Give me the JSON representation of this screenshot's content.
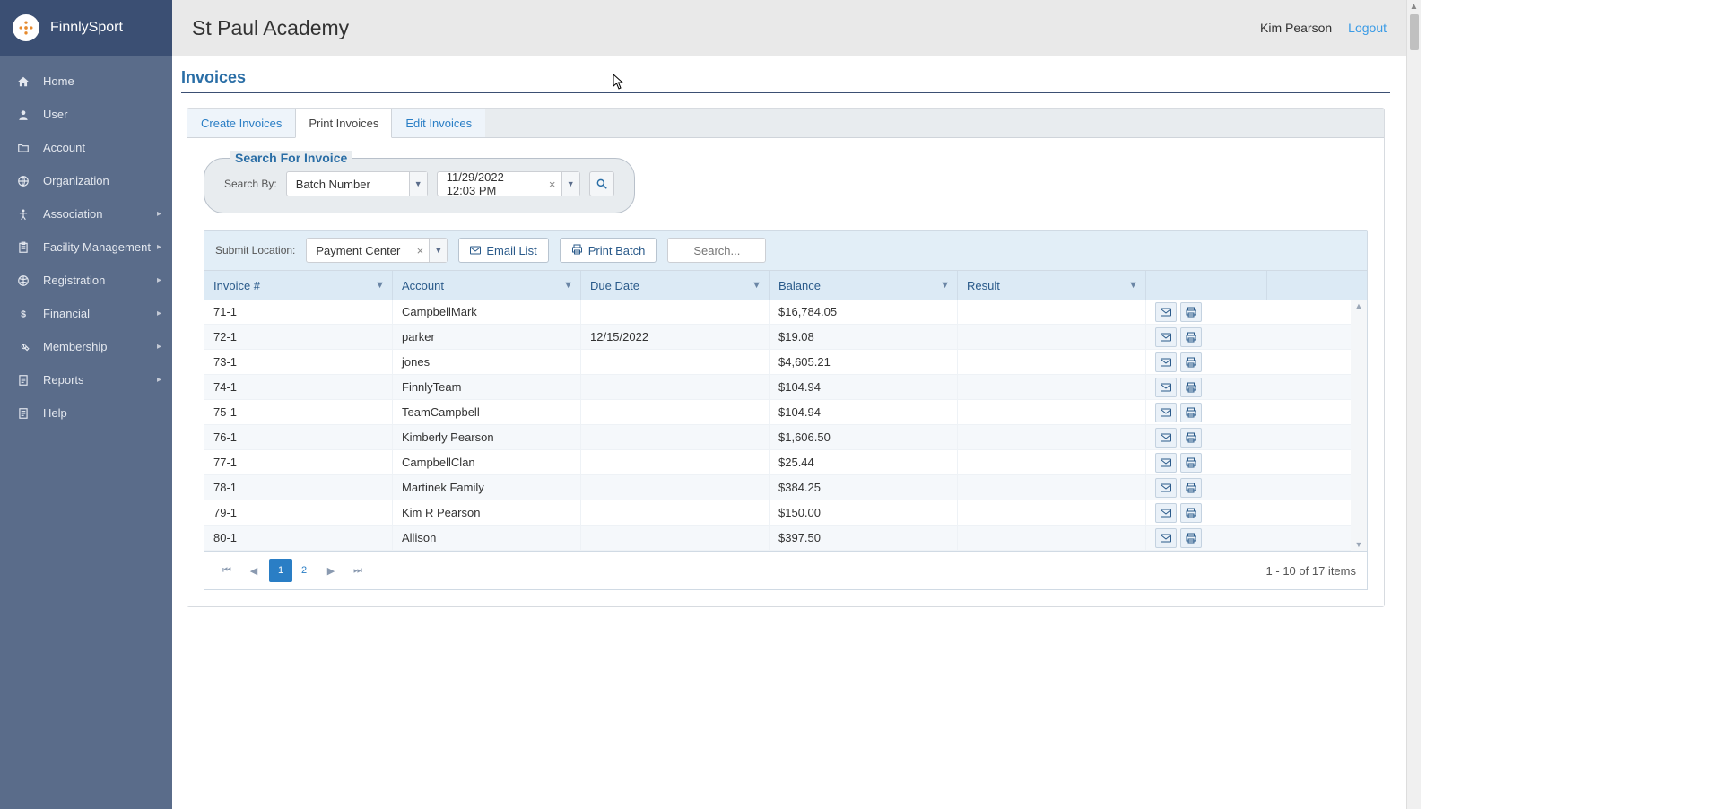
{
  "brand": {
    "name": "FinnlySport"
  },
  "sidebar": {
    "items": [
      {
        "label": "Home",
        "icon": "home",
        "submenu": false
      },
      {
        "label": "User",
        "icon": "user",
        "submenu": false
      },
      {
        "label": "Account",
        "icon": "folder",
        "submenu": false
      },
      {
        "label": "Organization",
        "icon": "globe",
        "submenu": false
      },
      {
        "label": "Association",
        "icon": "person-arms",
        "submenu": true
      },
      {
        "label": "Facility Management",
        "icon": "clipboard",
        "submenu": true
      },
      {
        "label": "Registration",
        "icon": "ball",
        "submenu": true
      },
      {
        "label": "Financial",
        "icon": "dollar",
        "submenu": true
      },
      {
        "label": "Membership",
        "icon": "wrench",
        "submenu": true
      },
      {
        "label": "Reports",
        "icon": "doc",
        "submenu": true
      },
      {
        "label": "Help",
        "icon": "doc",
        "submenu": false
      }
    ]
  },
  "header": {
    "org": "St Paul Academy",
    "user": "Kim Pearson",
    "logout": "Logout"
  },
  "page": {
    "title": "Invoices",
    "tabs": [
      {
        "label": "Create Invoices",
        "active": false
      },
      {
        "label": "Print Invoices",
        "active": true
      },
      {
        "label": "Edit Invoices",
        "active": false
      }
    ]
  },
  "search": {
    "legend": "Search For Invoice",
    "by_label": "Search By:",
    "by_value": "Batch Number",
    "date_value": "11/29/2022 12:03 PM"
  },
  "toolbar": {
    "submit_label": "Submit Location:",
    "submit_value": "Payment Center",
    "email_list": "Email List",
    "print_batch": "Print Batch",
    "search_placeholder": "Search..."
  },
  "grid": {
    "columns": [
      "Invoice #",
      "Account",
      "Due Date",
      "Balance",
      "Result"
    ],
    "rows": [
      {
        "inv": "71-1",
        "acct": "CampbellMark",
        "due": "",
        "bal": "$16,784.05",
        "res": ""
      },
      {
        "inv": "72-1",
        "acct": "parker",
        "due": "12/15/2022",
        "bal": "$19.08",
        "res": ""
      },
      {
        "inv": "73-1",
        "acct": "jones",
        "due": "",
        "bal": "$4,605.21",
        "res": ""
      },
      {
        "inv": "74-1",
        "acct": "FinnlyTeam",
        "due": "",
        "bal": "$104.94",
        "res": ""
      },
      {
        "inv": "75-1",
        "acct": "TeamCampbell",
        "due": "",
        "bal": "$104.94",
        "res": ""
      },
      {
        "inv": "76-1",
        "acct": "Kimberly Pearson",
        "due": "",
        "bal": "$1,606.50",
        "res": ""
      },
      {
        "inv": "77-1",
        "acct": "CampbellClan",
        "due": "",
        "bal": "$25.44",
        "res": ""
      },
      {
        "inv": "78-1",
        "acct": "Martinek Family",
        "due": "",
        "bal": "$384.25",
        "res": ""
      },
      {
        "inv": "79-1",
        "acct": "Kim R Pearson",
        "due": "",
        "bal": "$150.00",
        "res": ""
      },
      {
        "inv": "80-1",
        "acct": "Allison",
        "due": "",
        "bal": "$397.50",
        "res": ""
      }
    ]
  },
  "pager": {
    "pages": [
      "1",
      "2"
    ],
    "active": 0,
    "status": "1 - 10 of 17 items"
  },
  "colors": {
    "sidebar_bg": "#5a6c8a",
    "brand_bg": "#3b4f73",
    "accent": "#2a7ec5",
    "panel_bg": "#e8ecef",
    "table_head_bg": "#dceaf5"
  }
}
